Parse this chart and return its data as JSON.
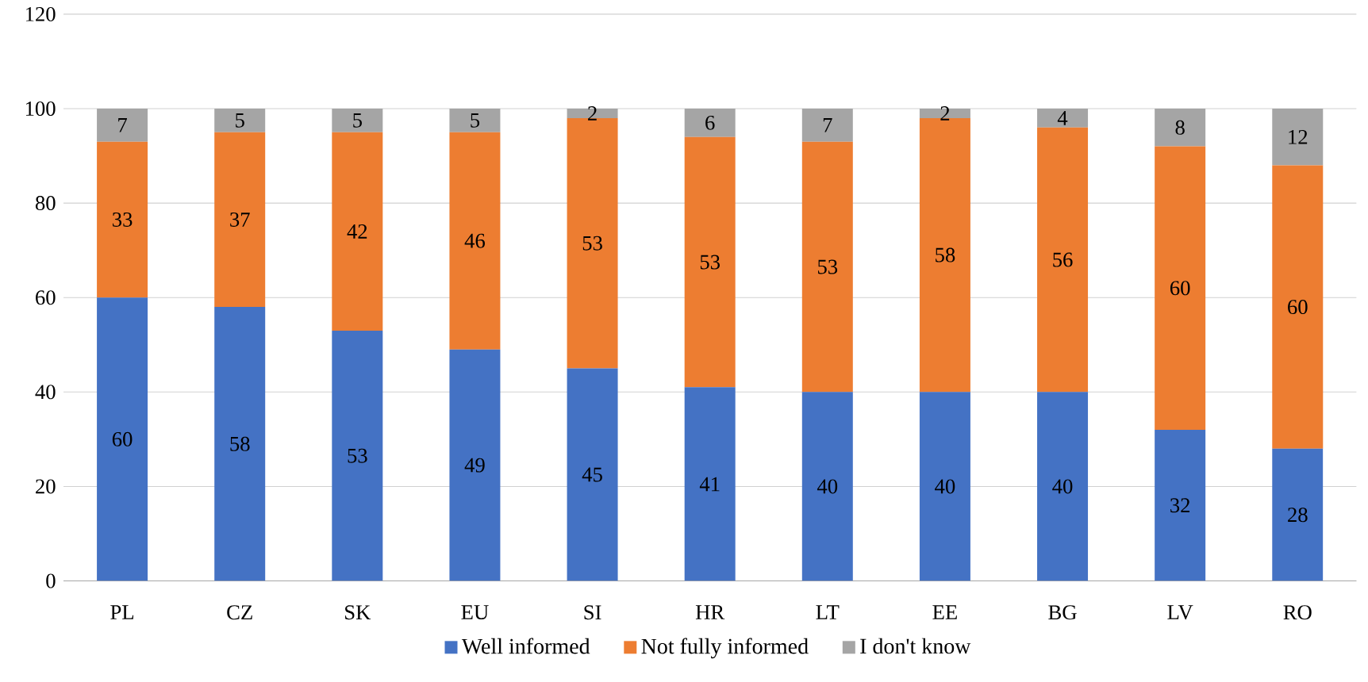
{
  "chart_data": {
    "type": "bar",
    "stacked": true,
    "categories": [
      "PL",
      "CZ",
      "SK",
      "EU",
      "SI",
      "HR",
      "LT",
      "EE",
      "BG",
      "LV",
      "RO"
    ],
    "series": [
      {
        "name": "Well informed",
        "color": "#4472c4",
        "values": [
          60,
          58,
          53,
          49,
          45,
          41,
          40,
          40,
          40,
          32,
          28
        ]
      },
      {
        "name": "Not fully informed",
        "color": "#ed7d31",
        "values": [
          33,
          37,
          42,
          46,
          53,
          53,
          53,
          58,
          56,
          60,
          60
        ]
      },
      {
        "name": "I don't know",
        "color": "#a5a5a5",
        "values": [
          7,
          5,
          5,
          5,
          2,
          6,
          7,
          2,
          4,
          8,
          12
        ]
      }
    ],
    "ylim": [
      0,
      120
    ],
    "yticks": [
      0,
      20,
      40,
      60,
      80,
      100,
      120
    ],
    "grid": "y",
    "legend": "bottom",
    "data_labels": true
  }
}
